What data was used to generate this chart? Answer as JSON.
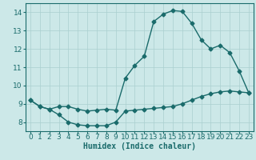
{
  "title": "",
  "xlabel": "Humidex (Indice chaleur)",
  "ylabel": "",
  "bg_color": "#cce8e8",
  "grid_color": "#aacfcf",
  "line_color": "#1a6b6b",
  "xlim": [
    -0.5,
    23.5
  ],
  "ylim": [
    7.5,
    14.5
  ],
  "xticks": [
    0,
    1,
    2,
    3,
    4,
    5,
    6,
    7,
    8,
    9,
    10,
    11,
    12,
    13,
    14,
    15,
    16,
    17,
    18,
    19,
    20,
    21,
    22,
    23
  ],
  "yticks": [
    8,
    9,
    10,
    11,
    12,
    13,
    14
  ],
  "curve1_x": [
    0,
    1,
    2,
    3,
    4,
    5,
    6,
    7,
    8,
    9,
    10,
    11,
    12,
    13,
    14,
    15,
    16,
    17,
    18,
    19,
    20,
    21,
    22,
    23
  ],
  "curve1_y": [
    9.2,
    8.85,
    8.7,
    8.85,
    8.85,
    8.7,
    8.6,
    8.65,
    8.7,
    8.65,
    10.4,
    11.1,
    11.6,
    13.5,
    13.9,
    14.1,
    14.05,
    13.4,
    12.5,
    12.0,
    12.2,
    11.8,
    10.8,
    9.6
  ],
  "curve2_x": [
    0,
    1,
    2,
    3,
    4,
    5,
    6,
    7,
    8,
    9,
    10,
    11,
    12,
    13,
    14,
    15,
    16,
    17,
    18,
    19,
    20,
    21,
    22,
    23
  ],
  "curve2_y": [
    9.2,
    8.85,
    8.7,
    8.4,
    8.0,
    7.85,
    7.8,
    7.8,
    7.8,
    8.0,
    8.6,
    8.65,
    8.7,
    8.75,
    8.8,
    8.85,
    9.0,
    9.2,
    9.4,
    9.55,
    9.65,
    9.7,
    9.65,
    9.6
  ],
  "xlabel_fontsize": 7,
  "tick_fontsize": 6.5,
  "linewidth": 1.0,
  "markersize": 2.5
}
